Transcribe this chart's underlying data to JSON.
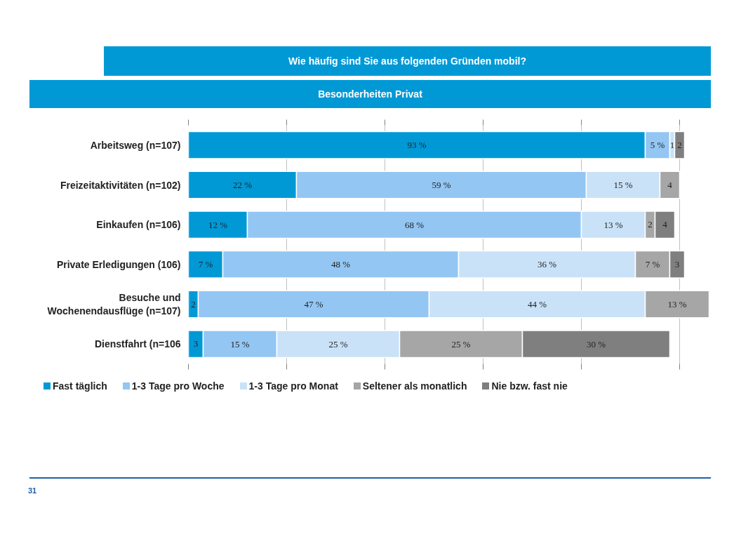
{
  "chart_data": {
    "type": "bar",
    "orientation": "horizontal",
    "stacked": true,
    "title": "Wie häufig sind Sie aus folgenden Gründen mobil?",
    "subtitle": "Besonderheiten Privat",
    "categories": [
      "Arbeitsweg (n=107)",
      "Freizeitaktivitäten (n=102)",
      "Einkaufen (n=106)",
      "Private Erledigungen (106)",
      "Besuche und\nWochenendausflüge (n=107)",
      "Dienstfahrt (n=106"
    ],
    "series": [
      {
        "name": "Fast täglich",
        "color": "#0099d6",
        "values": [
          93,
          22,
          12,
          7,
          2,
          3
        ],
        "value_labels": [
          "93 %",
          "22 %",
          "12 %",
          "7 %",
          "2",
          "3"
        ]
      },
      {
        "name": "1-3 Tage pro Woche",
        "color": "#93c6f3",
        "values": [
          5,
          59,
          68,
          48,
          47,
          15
        ],
        "value_labels": [
          "5 %",
          "59 %",
          "68 %",
          "48 %",
          "47 %",
          "15 %"
        ]
      },
      {
        "name": "1-3 Tage pro Monat",
        "color": "#c9e2f8",
        "values": [
          1,
          15,
          13,
          36,
          44,
          25
        ],
        "value_labels": [
          "1",
          "15 %",
          "13 %",
          "36 %",
          "44 %",
          "25 %"
        ]
      },
      {
        "name": "Seltener als monatlich",
        "color": "#a6a6a6",
        "values": [
          null,
          4,
          2,
          7,
          13,
          25
        ],
        "value_labels": [
          null,
          "4",
          "2",
          "7 %",
          "13 %",
          "25 %"
        ]
      },
      {
        "name": "Nie bzw. fast nie",
        "color": "#7f7f7f",
        "values": [
          2,
          null,
          4,
          3,
          null,
          30
        ],
        "value_labels": [
          "2",
          null,
          "4",
          "3",
          null,
          "30 %"
        ]
      }
    ],
    "xlim": [
      0,
      106
    ],
    "xticks": [
      {
        "value": 0,
        "label": null
      },
      {
        "value": 20,
        "label": null
      },
      {
        "value": 40,
        "label": null
      },
      {
        "value": 60,
        "label": null
      },
      {
        "value": 80,
        "label": null
      },
      {
        "value": 100,
        "label": null
      }
    ],
    "grid": "x",
    "legend": "bottom",
    "annotations": [
      "31"
    ]
  }
}
